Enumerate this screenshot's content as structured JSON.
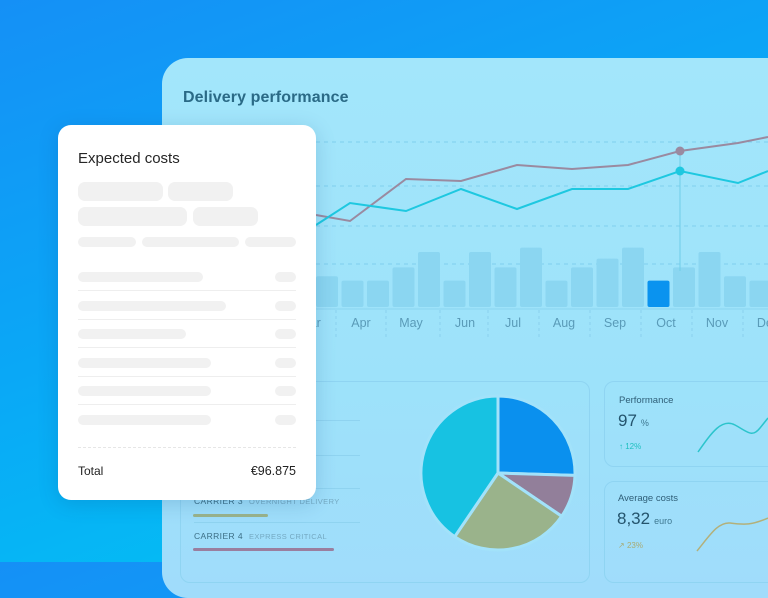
{
  "panel": {
    "title": "Delivery performance"
  },
  "chart_data": {
    "type": "bar+line",
    "categories": [
      "Mar",
      "Apr",
      "May",
      "Jun",
      "Jul",
      "Aug",
      "Sep",
      "Oct",
      "Nov",
      "Dec"
    ],
    "bars": [
      14,
      12,
      12,
      18,
      25,
      12,
      25,
      18,
      27,
      12,
      18,
      22,
      27,
      12,
      18,
      25,
      14,
      12
    ],
    "highlight_bar_index": 13,
    "highlight_month": "Oct",
    "series": [
      {
        "color": "#9a8aa0",
        "values": [
          46,
          43,
          64,
          63,
          71,
          69,
          71,
          78,
          82,
          85
        ]
      },
      {
        "color": "#1ec8e0",
        "values": [
          41,
          52,
          48,
          59,
          49,
          59,
          59,
          68,
          62,
          68
        ]
      }
    ],
    "grid": true
  },
  "pie": {
    "slices": [
      {
        "value": 25.5,
        "color": "#0a90ee"
      },
      {
        "value": 9,
        "color": "#927f9a"
      },
      {
        "value": 25,
        "color": "#9ab38b"
      },
      {
        "value": 40.5,
        "color": "#17c2e2"
      }
    ]
  },
  "carriers": [
    {
      "name": "CARRIER 3",
      "tag": "OVERNIGHT DELIVERY",
      "color": "#9ab38b",
      "share": 45
    },
    {
      "name": "CARRIER 4",
      "tag": "EXPRESS CRITICAL",
      "color": "#9a7f9f",
      "share": 85
    }
  ],
  "stats": [
    {
      "label": "Performance",
      "value": "97",
      "unit": "%",
      "delta": "12%",
      "delta_icon": "arrow-up-icon",
      "color": "#1fbfbf"
    },
    {
      "label": "Average costs",
      "value": "8,32",
      "unit": "euro",
      "delta": "23%",
      "delta_icon": "arrow-up-right-icon",
      "color": "#a8ab73"
    }
  ],
  "costs_card": {
    "title": "Expected costs",
    "total_label": "Total",
    "total_value": "€96.875"
  }
}
